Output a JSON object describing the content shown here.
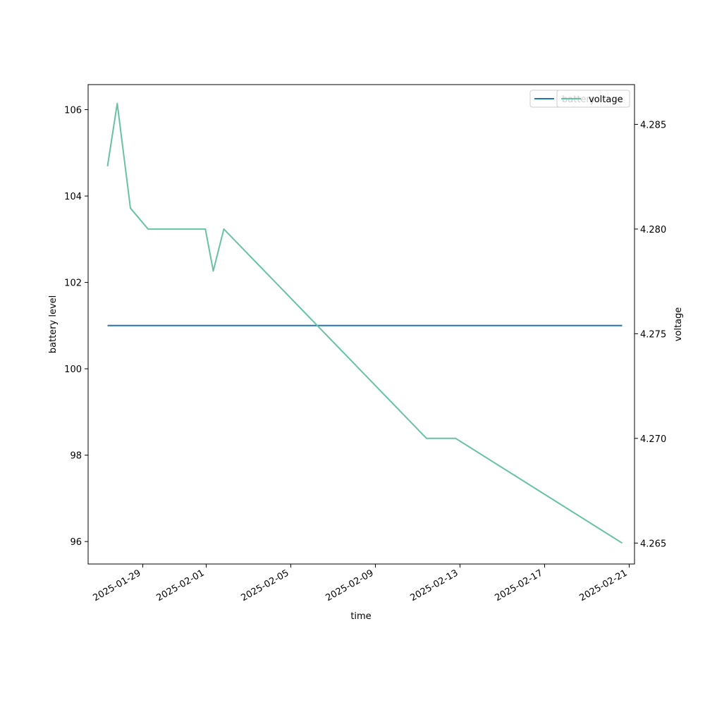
{
  "chart_data": {
    "type": "line",
    "xlabel": "time",
    "ylabel_left": "battery level",
    "ylabel_right": "voltage",
    "x_ticks": [
      "2025-01-29",
      "2025-02-01",
      "2025-02-05",
      "2025-02-09",
      "2025-02-13",
      "2025-02-17",
      "2025-02-21"
    ],
    "y_left_ticks": [
      "96",
      "98",
      "100",
      "102",
      "104",
      "106"
    ],
    "y_right_ticks": [
      "4.265",
      "4.270",
      "4.275",
      "4.280",
      "4.285"
    ],
    "x_range": [
      "2025-01-26T10:00",
      "2025-02-21T06:00"
    ],
    "y_left_range": [
      95.48,
      106.58
    ],
    "y_right_range": [
      4.264,
      4.2869
    ],
    "legend": {
      "placement": "upper-right"
    },
    "series": [
      {
        "name": "battery",
        "axis": "left",
        "color": "#1f77b4",
        "x": [
          "2025-01-27T08:00",
          "2025-02-20T16:00"
        ],
        "y": [
          101,
          101
        ]
      },
      {
        "name": "voltage",
        "axis": "right",
        "color": "#66c2a5",
        "x": [
          "2025-01-27T08:00",
          "2025-01-27T19:00",
          "2025-01-28T10:00",
          "2025-01-29T06:00",
          "2025-01-31T23:00",
          "2025-02-01T08:00",
          "2025-02-01T20:00",
          "2025-02-11T10:00",
          "2025-02-12T19:00",
          "2025-02-20T16:00"
        ],
        "y": [
          4.283,
          4.286,
          4.281,
          4.28,
          4.28,
          4.278,
          4.28,
          4.27,
          4.27,
          4.265
        ]
      }
    ]
  }
}
